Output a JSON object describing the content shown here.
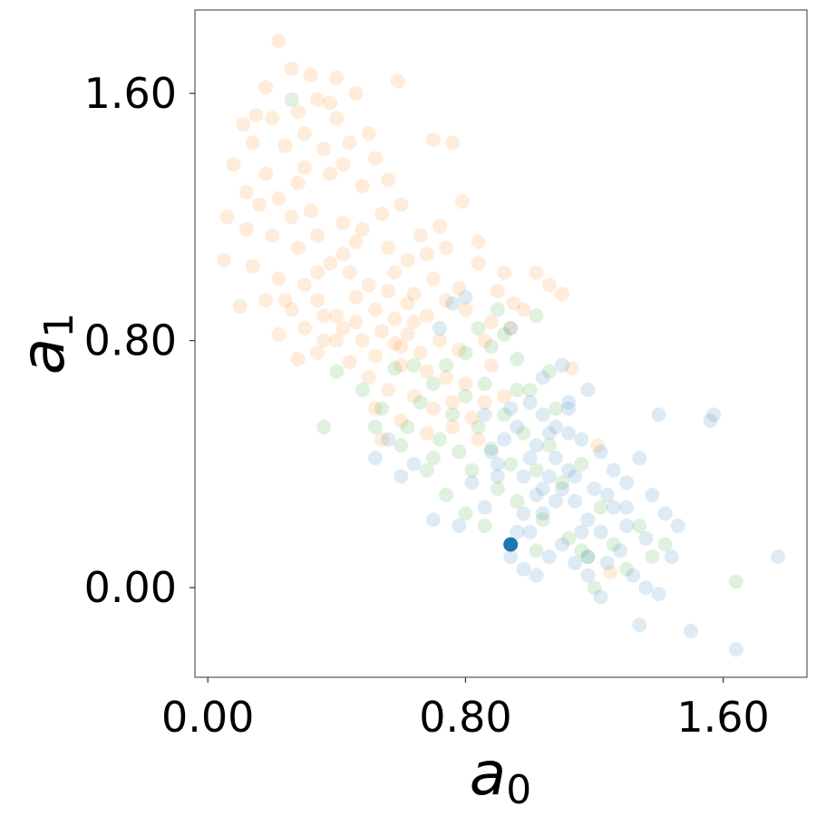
{
  "chart_data": {
    "type": "scatter",
    "title": "",
    "xlabel": {
      "base": "a",
      "sub": "0"
    },
    "ylabel": {
      "base": "a",
      "sub": "1"
    },
    "xlim": [
      -0.04,
      1.86
    ],
    "ylim": [
      -0.29,
      1.87
    ],
    "xticks": [
      0.0,
      0.8,
      1.6
    ],
    "xtick_labels": [
      "0.00",
      "0.80",
      "1.60"
    ],
    "yticks": [
      0.0,
      0.8,
      1.6
    ],
    "ytick_labels": [
      "0.00",
      "0.80",
      "1.60"
    ],
    "grid": false,
    "legend": "none",
    "point_opacity": 0.15,
    "series": [
      {
        "color": "#ff7f0e",
        "points": [
          [
            0.22,
            1.77
          ],
          [
            0.26,
            1.68
          ],
          [
            0.18,
            1.62
          ],
          [
            0.32,
            1.66
          ],
          [
            0.4,
            1.65
          ],
          [
            0.59,
            1.64
          ],
          [
            0.34,
            1.58
          ],
          [
            0.46,
            1.6
          ],
          [
            0.11,
            1.5
          ],
          [
            0.15,
            1.53
          ],
          [
            0.2,
            1.52
          ],
          [
            0.28,
            1.54
          ],
          [
            0.38,
            1.57
          ],
          [
            0.3,
            1.47
          ],
          [
            0.44,
            1.44
          ],
          [
            0.5,
            1.47
          ],
          [
            0.14,
            1.44
          ],
          [
            0.24,
            1.43
          ],
          [
            0.36,
            1.42
          ],
          [
            0.42,
            1.37
          ],
          [
            0.52,
            1.39
          ],
          [
            0.7,
            1.45
          ],
          [
            0.76,
            1.44
          ],
          [
            0.08,
            1.37
          ],
          [
            0.18,
            1.34
          ],
          [
            0.28,
            1.31
          ],
          [
            0.38,
            1.34
          ],
          [
            0.48,
            1.3
          ],
          [
            0.22,
            1.26
          ],
          [
            0.32,
            1.22
          ],
          [
            0.42,
            1.18
          ],
          [
            0.54,
            1.21
          ],
          [
            0.6,
            1.24
          ],
          [
            0.72,
            1.17
          ],
          [
            0.79,
            1.25
          ],
          [
            0.06,
            1.2
          ],
          [
            0.12,
            1.16
          ],
          [
            0.2,
            1.14
          ],
          [
            0.28,
            1.1
          ],
          [
            0.34,
            1.14
          ],
          [
            0.46,
            1.12
          ],
          [
            0.56,
            1.1
          ],
          [
            0.66,
            1.14
          ],
          [
            0.74,
            1.1
          ],
          [
            0.84,
            1.12
          ],
          [
            0.05,
            1.06
          ],
          [
            0.14,
            1.04
          ],
          [
            0.22,
            1.0
          ],
          [
            0.3,
            0.98
          ],
          [
            0.38,
            1.05
          ],
          [
            0.44,
            1.02
          ],
          [
            0.5,
            0.98
          ],
          [
            0.58,
            1.02
          ],
          [
            0.64,
            0.95
          ],
          [
            0.7,
            1.0
          ],
          [
            0.78,
            0.97
          ],
          [
            0.84,
            1.05
          ],
          [
            0.92,
            1.02
          ],
          [
            0.1,
            0.91
          ],
          [
            0.18,
            0.93
          ],
          [
            0.26,
            0.9
          ],
          [
            0.34,
            0.93
          ],
          [
            0.4,
            0.88
          ],
          [
            0.46,
            0.94
          ],
          [
            0.52,
            0.9
          ],
          [
            0.58,
            0.87
          ],
          [
            0.62,
            0.92
          ],
          [
            0.68,
            0.88
          ],
          [
            0.74,
            0.93
          ],
          [
            0.8,
            0.9
          ],
          [
            0.88,
            0.86
          ],
          [
            0.95,
            0.92
          ],
          [
            1.06,
            0.98
          ],
          [
            0.22,
            0.82
          ],
          [
            0.3,
            0.84
          ],
          [
            0.36,
            0.8
          ],
          [
            0.42,
            0.84
          ],
          [
            0.48,
            0.8
          ],
          [
            0.54,
            0.83
          ],
          [
            0.58,
            0.79
          ],
          [
            0.62,
            0.82
          ],
          [
            0.66,
            0.76
          ],
          [
            0.72,
            0.8
          ],
          [
            0.78,
            0.77
          ],
          [
            0.86,
            0.8
          ],
          [
            0.94,
            0.84
          ],
          [
            0.28,
            0.74
          ],
          [
            0.34,
            0.76
          ],
          [
            0.44,
            0.73
          ],
          [
            0.52,
            0.75
          ],
          [
            0.6,
            0.72
          ],
          [
            0.68,
            0.7
          ],
          [
            0.74,
            0.68
          ],
          [
            0.8,
            0.66
          ],
          [
            0.88,
            0.72
          ],
          [
            0.5,
            0.68
          ],
          [
            0.56,
            0.64
          ],
          [
            0.64,
            0.62
          ],
          [
            0.7,
            0.58
          ],
          [
            0.76,
            0.6
          ],
          [
            0.82,
            0.55
          ],
          [
            0.52,
            0.58
          ],
          [
            0.6,
            0.54
          ],
          [
            0.68,
            0.5
          ],
          [
            0.76,
            0.52
          ],
          [
            0.84,
            0.48
          ],
          [
            0.54,
            0.48
          ],
          [
            0.92,
            0.62
          ],
          [
            0.4,
            0.8
          ],
          [
            0.46,
            0.86
          ],
          [
            0.56,
            0.96
          ],
          [
            0.36,
            0.88
          ],
          [
            0.26,
            1.2
          ],
          [
            0.16,
            1.24
          ],
          [
            0.62,
            1.06
          ],
          [
            0.68,
            1.08
          ],
          [
            0.42,
            1.08
          ],
          [
            0.34,
            1.02
          ],
          [
            0.6,
            0.78
          ],
          [
            0.64,
            0.86
          ],
          [
            0.24,
            0.93
          ],
          [
            0.98,
            0.9
          ],
          [
            0.12,
            1.28
          ],
          [
            0.9,
            0.96
          ],
          [
            0.48,
            1.16
          ],
          [
            0.86,
            0.6
          ],
          [
            1.02,
            1.02
          ],
          [
            1.1,
            0.95
          ],
          [
            1.13,
            0.71
          ],
          [
            1.21,
            0.46
          ],
          [
            1.25,
            0.05
          ],
          [
            0.3,
            1.36
          ],
          [
            0.56,
            1.32
          ],
          [
            0.4,
            1.52
          ]
        ]
      },
      {
        "color": "#2ca02c",
        "points": [
          [
            0.26,
            1.58
          ],
          [
            0.9,
            0.9
          ],
          [
            1.02,
            0.88
          ],
          [
            0.4,
            0.7
          ],
          [
            0.48,
            0.64
          ],
          [
            0.54,
            0.58
          ],
          [
            0.58,
            0.71
          ],
          [
            0.62,
            0.52
          ],
          [
            0.66,
            0.6
          ],
          [
            0.7,
            0.66
          ],
          [
            0.72,
            0.48
          ],
          [
            0.76,
            0.56
          ],
          [
            0.78,
            0.44
          ],
          [
            0.8,
            0.62
          ],
          [
            0.82,
            0.38
          ],
          [
            0.84,
            0.52
          ],
          [
            0.86,
            0.66
          ],
          [
            0.88,
            0.45
          ],
          [
            0.9,
            0.32
          ],
          [
            0.92,
            0.56
          ],
          [
            0.94,
            0.4
          ],
          [
            0.96,
            0.28
          ],
          [
            0.98,
            0.5
          ],
          [
            1.0,
            0.64
          ],
          [
            1.02,
            0.38
          ],
          [
            1.04,
            0.22
          ],
          [
            1.06,
            0.46
          ],
          [
            1.08,
            0.58
          ],
          [
            1.1,
            0.34
          ],
          [
            1.12,
            0.16
          ],
          [
            1.16,
            0.4
          ],
          [
            1.18,
            0.1
          ],
          [
            1.22,
            0.26
          ],
          [
            1.26,
            0.14
          ],
          [
            1.3,
            0.06
          ],
          [
            1.34,
            0.2
          ],
          [
            1.38,
            0.1
          ],
          [
            1.42,
            0.14
          ],
          [
            0.64,
            0.72
          ],
          [
            0.74,
            0.72
          ],
          [
            0.88,
            0.78
          ],
          [
            0.96,
            0.74
          ],
          [
            1.06,
            0.7
          ],
          [
            0.52,
            0.52
          ],
          [
            0.6,
            0.46
          ],
          [
            0.68,
            0.38
          ],
          [
            0.74,
            0.3
          ],
          [
            0.8,
            0.24
          ],
          [
            0.86,
            0.2
          ],
          [
            1.02,
            0.12
          ],
          [
            1.16,
            0.12
          ],
          [
            1.2,
            0.0
          ],
          [
            1.64,
            0.02
          ],
          [
            0.36,
            0.52
          ],
          [
            0.8,
            0.76
          ],
          [
            0.92,
            0.82
          ],
          [
            0.96,
            0.64
          ],
          [
            0.84,
            0.84
          ],
          [
            0.7,
            0.42
          ]
        ]
      },
      {
        "color": "#1f77b4",
        "points": [
          [
            0.8,
            0.94
          ],
          [
            0.72,
            0.84
          ],
          [
            0.94,
            0.84
          ],
          [
            1.0,
            0.6
          ],
          [
            1.04,
            0.56
          ],
          [
            1.08,
            0.52
          ],
          [
            1.12,
            0.58
          ],
          [
            1.16,
            0.48
          ],
          [
            1.18,
            0.64
          ],
          [
            1.22,
            0.44
          ],
          [
            1.26,
            0.38
          ],
          [
            1.3,
            0.34
          ],
          [
            1.34,
            0.42
          ],
          [
            1.38,
            0.3
          ],
          [
            1.42,
            0.24
          ],
          [
            1.46,
            0.2
          ],
          [
            1.3,
            0.2
          ],
          [
            1.26,
            0.26
          ],
          [
            1.22,
            0.18
          ],
          [
            1.18,
            0.22
          ],
          [
            1.14,
            0.28
          ],
          [
            1.1,
            0.32
          ],
          [
            1.06,
            0.36
          ],
          [
            1.02,
            0.3
          ],
          [
            0.98,
            0.24
          ],
          [
            0.96,
            0.18
          ],
          [
            0.94,
            0.1
          ],
          [
            0.98,
            0.06
          ],
          [
            1.02,
            0.04
          ],
          [
            1.06,
            0.1
          ],
          [
            1.1,
            0.14
          ],
          [
            1.14,
            0.08
          ],
          [
            1.18,
            0.04
          ],
          [
            1.24,
            0.08
          ],
          [
            1.28,
            0.12
          ],
          [
            1.32,
            0.04
          ],
          [
            1.36,
            0.0
          ],
          [
            1.4,
            -0.02
          ],
          [
            1.34,
            -0.12
          ],
          [
            1.5,
            -0.14
          ],
          [
            1.64,
            -0.2
          ],
          [
            1.77,
            0.1
          ],
          [
            1.57,
            0.56
          ],
          [
            1.56,
            0.54
          ],
          [
            1.4,
            0.56
          ],
          [
            1.12,
            0.5
          ],
          [
            1.04,
            0.68
          ],
          [
            1.06,
            0.5
          ],
          [
            0.88,
            0.44
          ],
          [
            0.82,
            0.34
          ],
          [
            0.9,
            0.36
          ],
          [
            0.92,
            0.48
          ],
          [
            0.86,
            0.26
          ],
          [
            0.78,
            0.2
          ],
          [
            0.7,
            0.22
          ],
          [
            0.64,
            0.4
          ],
          [
            0.6,
            0.36
          ],
          [
            0.56,
            0.48
          ],
          [
            0.52,
            0.42
          ],
          [
            1.0,
            0.42
          ],
          [
            1.08,
            0.42
          ],
          [
            1.12,
            0.38
          ],
          [
            1.08,
            0.28
          ],
          [
            1.04,
            0.24
          ],
          [
            1.0,
            0.18
          ],
          [
            1.14,
            0.36
          ],
          [
            1.2,
            0.32
          ],
          [
            1.1,
            0.72
          ],
          [
            0.96,
            0.52
          ],
          [
            1.16,
            0.18
          ],
          [
            1.24,
            0.3
          ],
          [
            1.36,
            0.16
          ],
          [
            1.44,
            0.1
          ],
          [
            1.3,
            0.26
          ],
          [
            0.86,
            0.56
          ],
          [
            0.94,
            0.58
          ],
          [
            1.02,
            0.46
          ],
          [
            0.76,
            0.92
          ],
          [
            1.12,
            0.6
          ],
          [
            0.9,
            0.4
          ],
          [
            1.22,
            -0.03
          ],
          [
            1.18,
            0.1
          ],
          [
            0.98,
            0.36
          ],
          [
            1.04,
            0.32
          ]
        ]
      }
    ],
    "highlight": {
      "x": 0.94,
      "y": 0.14,
      "color": "#1f77b4"
    }
  }
}
